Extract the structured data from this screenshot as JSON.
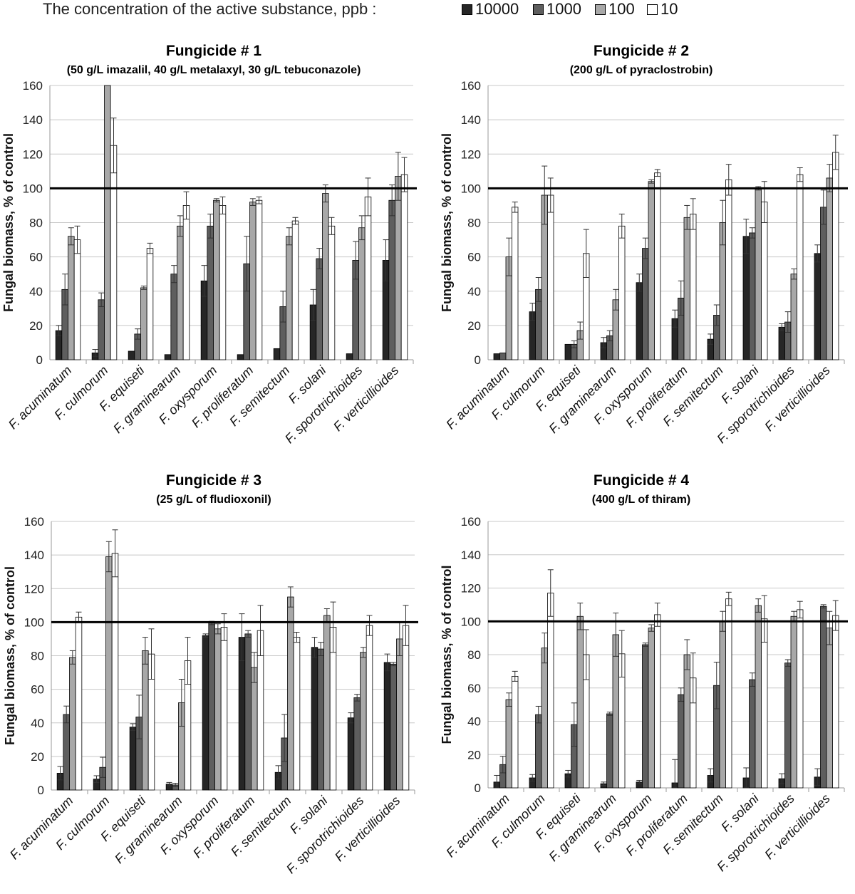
{
  "legend": {
    "title": "The concentration of the active substance, ppb :",
    "items": [
      {
        "label": "10000",
        "color": "#262626"
      },
      {
        "label": "1000",
        "color": "#5e5e5e"
      },
      {
        "label": "100",
        "color": "#a8a8a8"
      },
      {
        "label": "10",
        "color": "#ffffff"
      }
    ]
  },
  "chart_data": [
    {
      "type": "bar",
      "title": "Fungicide # 1",
      "subtitle": "(50 g/L imazalil, 40 g/L metalaxyl, 30 g/L tebuconazole)",
      "ylabel": "Fungal biomass, % of control",
      "ylim": [
        0,
        160
      ],
      "yticks": [
        "0",
        "20",
        "40",
        "60",
        "80",
        "100",
        "120",
        "140",
        "160"
      ],
      "reference_line": 100,
      "categories": [
        "F. acuminatum",
        "F. culmorum",
        "F. equiseti",
        "F. graminearum",
        "F. oxysporum",
        "F. proliferatum",
        "F. semitectum",
        "F. solani",
        "F. sporotrichioides",
        "F. verticillioides"
      ],
      "series": [
        {
          "name": "10000",
          "values": [
            17,
            4,
            5,
            3,
            46,
            3,
            6.5,
            32,
            3.5,
            58
          ],
          "errors": [
            3,
            2,
            0,
            0,
            9,
            0,
            0,
            9,
            0,
            12
          ]
        },
        {
          "name": "1000",
          "values": [
            41,
            35,
            15,
            50,
            78,
            56,
            31,
            59,
            58,
            93
          ],
          "errors": [
            9,
            4,
            3,
            5,
            7,
            16,
            9,
            6,
            11,
            9
          ]
        },
        {
          "name": "100",
          "values": [
            72,
            160,
            42,
            78,
            93,
            92,
            72,
            97,
            77,
            107
          ],
          "errors": [
            5,
            0,
            1,
            6,
            1,
            2,
            5,
            5,
            7,
            14
          ]
        },
        {
          "name": "10",
          "values": [
            70,
            125,
            65,
            90,
            90,
            93,
            81,
            78,
            95,
            108
          ],
          "errors": [
            8,
            16,
            3,
            8,
            5,
            2,
            2,
            5,
            11,
            10
          ]
        }
      ]
    },
    {
      "type": "bar",
      "title": "Fungicide # 2",
      "subtitle": "(200 g/L of pyraclostrobin)",
      "ylabel": "Fungal biomass, % of control",
      "ylim": [
        0,
        160
      ],
      "yticks": [
        "0",
        "20",
        "40",
        "60",
        "80",
        "100",
        "120",
        "140",
        "160"
      ],
      "reference_line": 100,
      "categories": [
        "F. acuminatum",
        "F. culmorum",
        "F. equiseti",
        "F. graminearum",
        "F. oxysporum",
        "F. proliferatum",
        "F. semitectum",
        "F. solani",
        "F. sporotrichioides",
        "F. verticillioides"
      ],
      "series": [
        {
          "name": "10000",
          "values": [
            3.5,
            28,
            9,
            10,
            45,
            24,
            12,
            72,
            19,
            62
          ],
          "errors": [
            0,
            5,
            0,
            3,
            5,
            5,
            3,
            10,
            2,
            5
          ]
        },
        {
          "name": "1000",
          "values": [
            4,
            41,
            9,
            14,
            65,
            36,
            26,
            74,
            22,
            89
          ],
          "errors": [
            0,
            7,
            2,
            3,
            6,
            10,
            6,
            3,
            6,
            10
          ]
        },
        {
          "name": "100",
          "values": [
            60,
            96,
            17,
            35,
            104,
            83,
            80,
            100,
            50,
            106
          ],
          "errors": [
            11,
            17,
            5,
            6,
            1,
            7,
            13,
            1,
            3,
            8
          ]
        },
        {
          "name": "10",
          "values": [
            89,
            96,
            62,
            78,
            109,
            85,
            105,
            92,
            108,
            121
          ],
          "errors": [
            3,
            10,
            14,
            7,
            2,
            9,
            9,
            12,
            4,
            10
          ]
        }
      ]
    },
    {
      "type": "bar",
      "title": "Fungicide # 3",
      "subtitle": "(25 g/L of fludioxonil)",
      "ylabel": "Fungal biomass, % of control",
      "ylim": [
        0,
        160
      ],
      "yticks": [
        "0",
        "20",
        "40",
        "60",
        "80",
        "100",
        "120",
        "140",
        "160"
      ],
      "reference_line": 100,
      "categories": [
        "F. acuminatum",
        "F. culmorum",
        "F. equiseti",
        "F. graminearum",
        "F. oxysporum",
        "F. proliferatum",
        "F. semitectum",
        "F. solani",
        "F. sporotrichioides",
        "F. verticillioides"
      ],
      "series": [
        {
          "name": "10000",
          "values": [
            10,
            6.5,
            37.5,
            3.5,
            92,
            91,
            10.5,
            85,
            43,
            76
          ],
          "errors": [
            4,
            2,
            2,
            1,
            1,
            14,
            4,
            6,
            3,
            5
          ]
        },
        {
          "name": "1000",
          "values": [
            45,
            13.5,
            43.5,
            3,
            99.5,
            93,
            31,
            84,
            55,
            75
          ],
          "errors": [
            5,
            6,
            13,
            1,
            1,
            2,
            14,
            4,
            2,
            1
          ]
        },
        {
          "name": "100",
          "values": [
            79,
            139,
            83,
            52,
            96,
            73,
            115,
            104,
            82,
            90
          ],
          "errors": [
            4,
            9,
            8,
            14,
            3,
            9,
            6,
            4,
            3,
            10
          ]
        },
        {
          "name": "10",
          "values": [
            103,
            141,
            81,
            77,
            97,
            95,
            91,
            97,
            98,
            98
          ],
          "errors": [
            3,
            14,
            15,
            14,
            8,
            15,
            3,
            15,
            6,
            12
          ]
        }
      ]
    },
    {
      "type": "bar",
      "title": "Fungicide # 4",
      "subtitle": "(400 g/L of thiram)",
      "ylabel": "Fungal biomass, % of control",
      "ylim": [
        0,
        160
      ],
      "yticks": [
        "0",
        "20",
        "40",
        "60",
        "80",
        "100",
        "120",
        "140",
        "160"
      ],
      "reference_line": 100,
      "categories": [
        "F. acuminatum",
        "F. culmorum",
        "F. equiseti",
        "F. graminearum",
        "F. oxysporum",
        "F. proliferatum",
        "F. semitectum",
        "F. solani",
        "F. sporotrichioides",
        "F. verticillioides"
      ],
      "series": [
        {
          "name": "10000",
          "values": [
            3.5,
            6,
            8.5,
            2.5,
            3.5,
            3,
            7.5,
            6,
            5.5,
            6.5
          ],
          "errors": [
            4,
            2,
            2,
            1,
            1,
            14,
            4,
            6,
            3,
            5
          ]
        },
        {
          "name": "1000",
          "values": [
            14,
            44,
            38,
            44.5,
            86,
            56,
            61.5,
            65,
            75,
            109
          ],
          "errors": [
            5,
            5,
            13,
            1,
            1,
            4,
            14,
            4,
            2,
            1
          ]
        },
        {
          "name": "100",
          "values": [
            53,
            84,
            103,
            92,
            96,
            80,
            100,
            109.5,
            103,
            96
          ],
          "errors": [
            4,
            9,
            8,
            13,
            2,
            9,
            6,
            4,
            3,
            10
          ]
        },
        {
          "name": "10",
          "values": [
            67,
            117,
            80,
            80.5,
            104,
            66,
            113.5,
            101.5,
            107,
            103.5
          ],
          "errors": [
            3,
            14,
            15,
            14,
            7,
            15,
            4,
            14,
            5,
            9
          ]
        }
      ]
    }
  ]
}
